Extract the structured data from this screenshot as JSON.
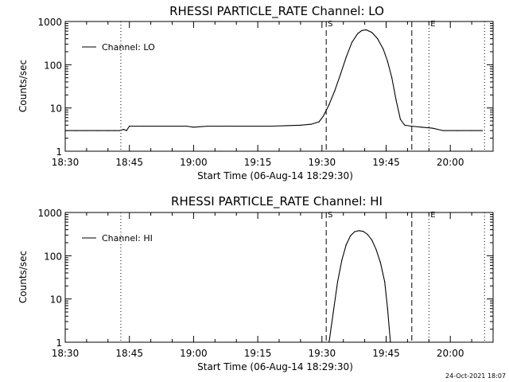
{
  "footer_timestamp": "24-Oct-2021 18:07",
  "chart_data": [
    {
      "type": "line",
      "title": "RHESSI PARTICLE_RATE Channel: LO",
      "xlabel": "Start Time (06-Aug-14 18:29:30)",
      "ylabel": "Counts/sec",
      "y_scale": "log",
      "xlim": [
        0,
        6000
      ],
      "ylim": [
        1,
        1000
      ],
      "x_ticks": [
        {
          "t": 0,
          "label": "18:30"
        },
        {
          "t": 900,
          "label": "18:45"
        },
        {
          "t": 1800,
          "label": "19:00"
        },
        {
          "t": 2700,
          "label": "19:15"
        },
        {
          "t": 3600,
          "label": "19:30"
        },
        {
          "t": 4500,
          "label": "19:45"
        },
        {
          "t": 5400,
          "label": "20:00"
        }
      ],
      "y_ticks": [
        {
          "v": 1,
          "label": "1"
        },
        {
          "v": 10,
          "label": "10"
        },
        {
          "v": 100,
          "label": "100"
        },
        {
          "v": 1000,
          "label": "1000"
        }
      ],
      "legend": {
        "position": "top-left",
        "label": "Channel: LO"
      },
      "markers": [
        {
          "t": 3660,
          "style": "dashed",
          "label": "S"
        },
        {
          "t": 4860,
          "style": "dashed",
          "label": ""
        },
        {
          "t": 5100,
          "style": "dotted",
          "label": "E"
        },
        {
          "t": 5880,
          "style": "dotted",
          "label": ""
        },
        {
          "t": 780,
          "style": "dotted",
          "label": ""
        }
      ],
      "series": [
        {
          "name": "Channel: LO",
          "points": [
            [
              0,
              3
            ],
            [
              150,
              3
            ],
            [
              250,
              3
            ],
            [
              300,
              3
            ],
            [
              450,
              3
            ],
            [
              600,
              3
            ],
            [
              700,
              3
            ],
            [
              760,
              3
            ],
            [
              820,
              3.2
            ],
            [
              860,
              3
            ],
            [
              900,
              3.8
            ],
            [
              1100,
              3.8
            ],
            [
              1300,
              3.8
            ],
            [
              1500,
              3.8
            ],
            [
              1700,
              3.8
            ],
            [
              1800,
              3.6
            ],
            [
              2000,
              3.8
            ],
            [
              2300,
              3.8
            ],
            [
              2600,
              3.8
            ],
            [
              2900,
              3.8
            ],
            [
              3100,
              3.9
            ],
            [
              3300,
              4
            ],
            [
              3450,
              4.2
            ],
            [
              3560,
              4.8
            ],
            [
              3620,
              6.5
            ],
            [
              3700,
              12
            ],
            [
              3780,
              25
            ],
            [
              3860,
              60
            ],
            [
              3940,
              150
            ],
            [
              4020,
              330
            ],
            [
              4100,
              520
            ],
            [
              4160,
              620
            ],
            [
              4220,
              640
            ],
            [
              4300,
              560
            ],
            [
              4380,
              400
            ],
            [
              4460,
              230
            ],
            [
              4520,
              120
            ],
            [
              4580,
              50
            ],
            [
              4640,
              15
            ],
            [
              4700,
              5.5
            ],
            [
              4760,
              4
            ],
            [
              4850,
              3.8
            ],
            [
              5000,
              3.6
            ],
            [
              5150,
              3.4
            ],
            [
              5300,
              3
            ],
            [
              5500,
              3
            ],
            [
              5700,
              3
            ],
            [
              5850,
              3
            ]
          ]
        }
      ]
    },
    {
      "type": "line",
      "title": "RHESSI PARTICLE_RATE Channel: HI",
      "xlabel": "Start Time (06-Aug-14 18:29:30)",
      "ylabel": "Counts/sec",
      "y_scale": "log",
      "xlim": [
        0,
        6000
      ],
      "ylim": [
        1,
        1000
      ],
      "x_ticks": [
        {
          "t": 0,
          "label": "18:30"
        },
        {
          "t": 900,
          "label": "18:45"
        },
        {
          "t": 1800,
          "label": "19:00"
        },
        {
          "t": 2700,
          "label": "19:15"
        },
        {
          "t": 3600,
          "label": "19:30"
        },
        {
          "t": 4500,
          "label": "19:45"
        },
        {
          "t": 5400,
          "label": "20:00"
        }
      ],
      "y_ticks": [
        {
          "v": 1,
          "label": "1"
        },
        {
          "v": 10,
          "label": "10"
        },
        {
          "v": 100,
          "label": "100"
        },
        {
          "v": 1000,
          "label": "1000"
        }
      ],
      "legend": {
        "position": "top-left",
        "label": "Channel: HI"
      },
      "markers": [
        {
          "t": 3660,
          "style": "dashed",
          "label": "S"
        },
        {
          "t": 4860,
          "style": "dashed",
          "label": ""
        },
        {
          "t": 5100,
          "style": "dotted",
          "label": "E"
        },
        {
          "t": 5880,
          "style": "dotted",
          "label": ""
        },
        {
          "t": 780,
          "style": "dotted",
          "label": ""
        }
      ],
      "series": [
        {
          "name": "Channel: HI",
          "points": [
            [
              3700,
              1
            ],
            [
              3760,
              5
            ],
            [
              3820,
              25
            ],
            [
              3880,
              80
            ],
            [
              3940,
              180
            ],
            [
              4000,
              290
            ],
            [
              4060,
              360
            ],
            [
              4120,
              380
            ],
            [
              4180,
              365
            ],
            [
              4240,
              310
            ],
            [
              4300,
              230
            ],
            [
              4360,
              140
            ],
            [
              4420,
              70
            ],
            [
              4480,
              25
            ],
            [
              4520,
              6
            ],
            [
              4560,
              1
            ]
          ]
        }
      ]
    }
  ]
}
